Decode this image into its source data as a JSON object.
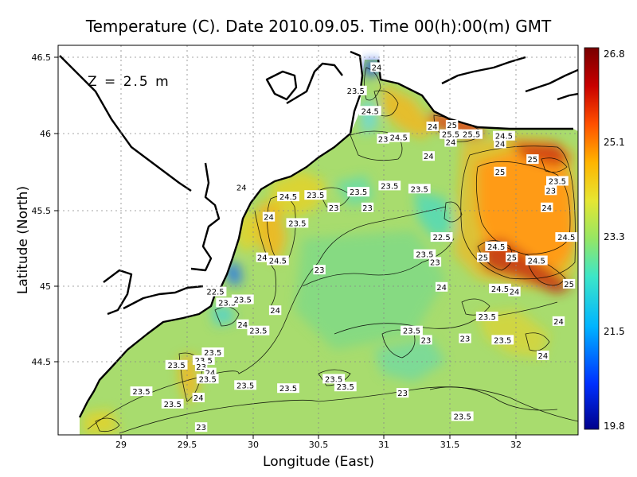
{
  "title": "Temperature (C). Date 2010.09.05. Time 00(h):00(m) GMT",
  "depth_label": "Z  =  2.5  m",
  "x_axis_label": "Longitude (East)",
  "y_axis_label": "Latitude (North)",
  "colorbar": {
    "tick_labels": [
      "26.8",
      "25.1",
      "23.3",
      "21.5",
      "19.8"
    ],
    "min": 19.8,
    "max": 26.8,
    "colors": [
      "#00008b",
      "#0030ff",
      "#00b4ff",
      "#3ce6c8",
      "#96e664",
      "#e6e632",
      "#ffb400",
      "#ff5000",
      "#c80000",
      "#780000"
    ]
  },
  "colors": {
    "land": "#ffffff",
    "coastline": "#000000",
    "grid": "#888888",
    "contour_line": "#000000"
  },
  "chart_data": {
    "type": "heatmap",
    "title": "Temperature (C). Date 2010.09.05. Time 00(h):00(m) GMT",
    "xlabel": "Longitude (East)",
    "ylabel": "Latitude (North)",
    "xlim": [
      28.45,
      32.45
    ],
    "ylim": [
      44.05,
      46.55
    ],
    "x_ticks": [
      "29",
      "29.5",
      "30",
      "30.5",
      "31",
      "31.5",
      "32"
    ],
    "y_ticks": [
      "44.5",
      "45",
      "45.5",
      "46",
      "46.5"
    ],
    "grid": true,
    "value_range": [
      19.8,
      26.8
    ],
    "contour_labels": [
      {
        "lon": 30.9,
        "lat": 46.41,
        "text": "24"
      },
      {
        "lon": 30.74,
        "lat": 46.26,
        "text": "23.5"
      },
      {
        "lon": 30.85,
        "lat": 46.13,
        "text": "24.5"
      },
      {
        "lon": 31.33,
        "lat": 46.03,
        "text": "24"
      },
      {
        "lon": 31.48,
        "lat": 46.04,
        "text": "25"
      },
      {
        "lon": 31.47,
        "lat": 45.98,
        "text": "25.5"
      },
      {
        "lon": 31.63,
        "lat": 45.98,
        "text": "25.5"
      },
      {
        "lon": 31.47,
        "lat": 45.93,
        "text": "24"
      },
      {
        "lon": 30.95,
        "lat": 45.95,
        "text": "23"
      },
      {
        "lon": 31.07,
        "lat": 45.96,
        "text": "24.5"
      },
      {
        "lon": 31.88,
        "lat": 45.97,
        "text": "24.5"
      },
      {
        "lon": 31.85,
        "lat": 45.92,
        "text": "24"
      },
      {
        "lon": 32.1,
        "lat": 45.82,
        "text": "25"
      },
      {
        "lon": 31.3,
        "lat": 45.84,
        "text": "24"
      },
      {
        "lon": 31.85,
        "lat": 45.74,
        "text": "25"
      },
      {
        "lon": 32.29,
        "lat": 45.68,
        "text": "23.5"
      },
      {
        "lon": 29.86,
        "lat": 45.64,
        "text": "24"
      },
      {
        "lon": 30.43,
        "lat": 45.59,
        "text": "23.5"
      },
      {
        "lon": 30.22,
        "lat": 45.58,
        "text": "24.5"
      },
      {
        "lon": 30.57,
        "lat": 45.51,
        "text": "23"
      },
      {
        "lon": 30.76,
        "lat": 45.61,
        "text": "23.5"
      },
      {
        "lon": 30.83,
        "lat": 45.51,
        "text": "23"
      },
      {
        "lon": 31.0,
        "lat": 45.65,
        "text": "23.5"
      },
      {
        "lon": 31.23,
        "lat": 45.63,
        "text": "23.5"
      },
      {
        "lon": 32.24,
        "lat": 45.62,
        "text": "23"
      },
      {
        "lon": 32.21,
        "lat": 45.51,
        "text": "24"
      },
      {
        "lon": 30.07,
        "lat": 45.45,
        "text": "24"
      },
      {
        "lon": 30.29,
        "lat": 45.41,
        "text": "23.5"
      },
      {
        "lon": 31.4,
        "lat": 45.32,
        "text": "22.5"
      },
      {
        "lon": 32.36,
        "lat": 45.32,
        "text": "24.5"
      },
      {
        "lon": 31.82,
        "lat": 45.26,
        "text": "24.5"
      },
      {
        "lon": 31.27,
        "lat": 45.21,
        "text": "23.5"
      },
      {
        "lon": 31.35,
        "lat": 45.16,
        "text": "23"
      },
      {
        "lon": 31.72,
        "lat": 45.19,
        "text": "25"
      },
      {
        "lon": 31.94,
        "lat": 45.19,
        "text": "25"
      },
      {
        "lon": 32.13,
        "lat": 45.17,
        "text": "24.5"
      },
      {
        "lon": 30.02,
        "lat": 45.19,
        "text": "24"
      },
      {
        "lon": 30.14,
        "lat": 45.17,
        "text": "24.5"
      },
      {
        "lon": 30.46,
        "lat": 45.11,
        "text": "23"
      },
      {
        "lon": 31.85,
        "lat": 44.99,
        "text": "24.5"
      },
      {
        "lon": 31.96,
        "lat": 44.97,
        "text": "24"
      },
      {
        "lon": 32.38,
        "lat": 45.02,
        "text": "25"
      },
      {
        "lon": 31.4,
        "lat": 45.0,
        "text": "24"
      },
      {
        "lon": 29.66,
        "lat": 44.97,
        "text": "22.5"
      },
      {
        "lon": 29.75,
        "lat": 44.9,
        "text": "23.5"
      },
      {
        "lon": 29.87,
        "lat": 44.92,
        "text": "23.5"
      },
      {
        "lon": 30.12,
        "lat": 44.85,
        "text": "24"
      },
      {
        "lon": 29.87,
        "lat": 44.76,
        "text": "24"
      },
      {
        "lon": 31.75,
        "lat": 44.81,
        "text": "23.5"
      },
      {
        "lon": 32.3,
        "lat": 44.78,
        "text": "24"
      },
      {
        "lon": 29.99,
        "lat": 44.72,
        "text": "23.5"
      },
      {
        "lon": 31.17,
        "lat": 44.72,
        "text": "23.5"
      },
      {
        "lon": 31.58,
        "lat": 44.67,
        "text": "23"
      },
      {
        "lon": 31.28,
        "lat": 44.66,
        "text": "23"
      },
      {
        "lon": 31.87,
        "lat": 44.66,
        "text": "23.5"
      },
      {
        "lon": 29.64,
        "lat": 44.58,
        "text": "23.5"
      },
      {
        "lon": 29.57,
        "lat": 44.53,
        "text": "23.5"
      },
      {
        "lon": 32.18,
        "lat": 44.56,
        "text": "24"
      },
      {
        "lon": 29.36,
        "lat": 44.5,
        "text": "23.5"
      },
      {
        "lon": 29.55,
        "lat": 44.49,
        "text": "23"
      },
      {
        "lon": 29.62,
        "lat": 44.45,
        "text": "24"
      },
      {
        "lon": 29.6,
        "lat": 44.41,
        "text": "23.5"
      },
      {
        "lon": 30.57,
        "lat": 44.41,
        "text": "23.5"
      },
      {
        "lon": 30.66,
        "lat": 44.36,
        "text": "23.5"
      },
      {
        "lon": 29.89,
        "lat": 44.37,
        "text": "23.5"
      },
      {
        "lon": 30.22,
        "lat": 44.35,
        "text": "23.5"
      },
      {
        "lon": 29.09,
        "lat": 44.33,
        "text": "23.5"
      },
      {
        "lon": 29.53,
        "lat": 44.29,
        "text": "24"
      },
      {
        "lon": 29.33,
        "lat": 44.25,
        "text": "23.5"
      },
      {
        "lon": 31.1,
        "lat": 44.32,
        "text": "23"
      },
      {
        "lon": 31.56,
        "lat": 44.17,
        "text": "23.5"
      },
      {
        "lon": 29.55,
        "lat": 44.1,
        "text": "23"
      }
    ]
  }
}
